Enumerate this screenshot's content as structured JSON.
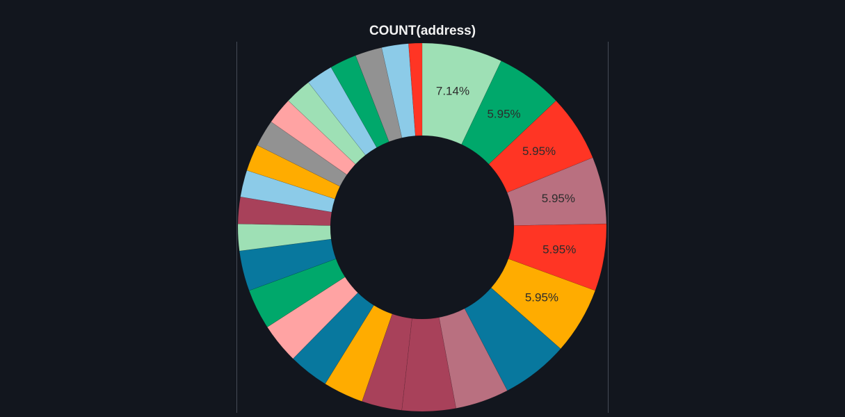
{
  "chart_data": {
    "type": "pie",
    "title": "COUNT(address)",
    "donut": true,
    "start_angle_deg": 0,
    "direction": "clockwise",
    "slices": [
      {
        "value": 7.14,
        "label": "7.14%",
        "color": "#9ee0b5"
      },
      {
        "value": 5.95,
        "label": "5.95%",
        "color": "#00a86b"
      },
      {
        "value": 5.95,
        "label": "5.95%",
        "color": "#ff3524"
      },
      {
        "value": 5.95,
        "label": "5.95%",
        "color": "#b97080"
      },
      {
        "value": 5.95,
        "label": "5.95%",
        "color": "#ff3524"
      },
      {
        "value": 5.95,
        "label": "5.95%",
        "color": "#ffac00"
      },
      {
        "value": 5.95,
        "label": "",
        "color": "#08789e"
      },
      {
        "value": 4.76,
        "label": "",
        "color": "#b97080"
      },
      {
        "value": 4.76,
        "label": "",
        "color": "#a8415a"
      },
      {
        "value": 3.57,
        "label": "",
        "color": "#a8415a"
      },
      {
        "value": 3.57,
        "label": "",
        "color": "#ffac00"
      },
      {
        "value": 3.57,
        "label": "",
        "color": "#08789e"
      },
      {
        "value": 3.57,
        "label": "",
        "color": "#ffa3a3"
      },
      {
        "value": 3.57,
        "label": "",
        "color": "#00a86b"
      },
      {
        "value": 3.57,
        "label": "",
        "color": "#08789e"
      },
      {
        "value": 2.38,
        "label": "",
        "color": "#9ee0b5"
      },
      {
        "value": 2.38,
        "label": "",
        "color": "#a8415a"
      },
      {
        "value": 2.38,
        "label": "",
        "color": "#8ccbe8"
      },
      {
        "value": 2.38,
        "label": "",
        "color": "#ffac00"
      },
      {
        "value": 2.38,
        "label": "",
        "color": "#929292"
      },
      {
        "value": 2.38,
        "label": "",
        "color": "#ffa3a3"
      },
      {
        "value": 2.38,
        "label": "",
        "color": "#9ee0b5"
      },
      {
        "value": 2.38,
        "label": "",
        "color": "#8ccbe8"
      },
      {
        "value": 2.38,
        "label": "",
        "color": "#00a86b"
      },
      {
        "value": 2.38,
        "label": "",
        "color": "#929292"
      },
      {
        "value": 2.38,
        "label": "",
        "color": "#8ccbe8"
      },
      {
        "value": 1.19,
        "label": "",
        "color": "#ff3524"
      }
    ]
  },
  "colors": {
    "background": "#12161e",
    "title": "#f2f2f2",
    "label": "#2c2c2c",
    "divider": "#454c57"
  }
}
